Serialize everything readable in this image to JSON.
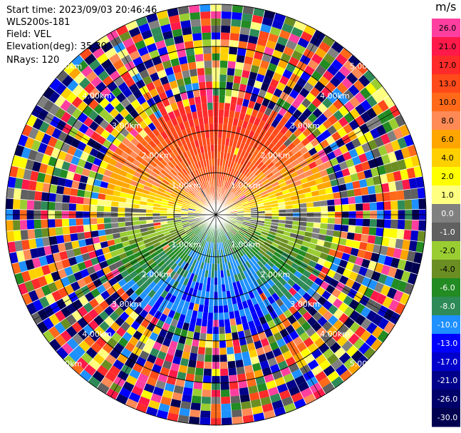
{
  "header": {
    "start_time": "Start time: 2023/09/03 20:46:46",
    "instrument": "WLS200s-181",
    "field": "Field: VEL",
    "elevation": "Elevation(deg): 35.30",
    "nrays": "NRays: 120"
  },
  "colorbar": {
    "unit": "m/s",
    "ticks": [
      "26.0",
      "21.0",
      "17.0",
      "13.0",
      "10.0",
      "8.0",
      "6.0",
      "4.0",
      "2.0",
      "1.0",
      "0.0",
      "-1.0",
      "-2.0",
      "-4.0",
      "-6.0",
      "-8.0",
      "-10.0",
      "-13.0",
      "-17.0",
      "-21.0",
      "-26.0",
      "-30.0"
    ],
    "colors": [
      "#ff3fa0",
      "#ff1a4a",
      "#ff2a2a",
      "#ff4a1a",
      "#ff6a1a",
      "#ff8a55",
      "#ffa500",
      "#ffd000",
      "#ffff00",
      "#ffff80",
      "#808080",
      "#606060",
      "#9acd32",
      "#6b8e23",
      "#228b22",
      "#2e8b57",
      "#1e90ff",
      "#0000ff",
      "#0000cc",
      "#00008b",
      "#00006a",
      "#000050"
    ]
  },
  "chart_data": {
    "type": "ppi",
    "field": "VEL",
    "units": "m/s",
    "nrays": 120,
    "elevation_deg": 35.3,
    "range_rings_km": [
      1.0,
      2.0,
      3.0,
      4.0,
      5.0
    ],
    "range_ring_labels": [
      "1.00km",
      "2.00km",
      "3.00km",
      "4.00km",
      "5.00km"
    ],
    "max_range_km": 5.0,
    "valid_data_range_km": 3.0,
    "velocity_pattern": {
      "north": "positive 8 to 17 m/s",
      "south": "negative -8 to -13 m/s",
      "east_west": "near zero"
    },
    "vmin": -30.0,
    "vmax": 26.0
  }
}
